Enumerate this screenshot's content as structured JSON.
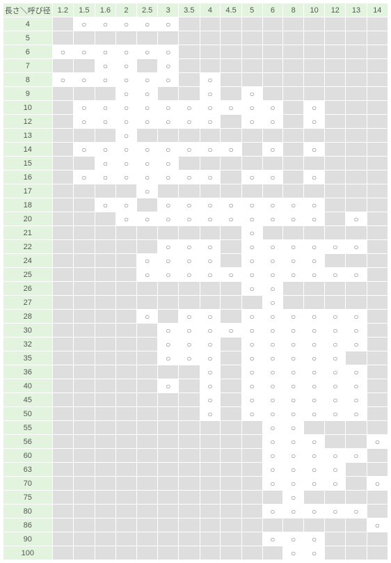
{
  "cornerLabel": "長さ＼呼び径",
  "diameters": [
    "1.2",
    "1.5",
    "1.6",
    "2",
    "2.5",
    "3",
    "3.5",
    "4",
    "4.5",
    "5",
    "6",
    "8",
    "10",
    "12",
    "13",
    "14"
  ],
  "lengths": [
    "4",
    "5",
    "6",
    "7",
    "8",
    "9",
    "10",
    "12",
    "13",
    "14",
    "15",
    "16",
    "17",
    "18",
    "20",
    "21",
    "22",
    "24",
    "25",
    "26",
    "27",
    "28",
    "30",
    "32",
    "35",
    "36",
    "40",
    "45",
    "50",
    "55",
    "56",
    "60",
    "63",
    "70",
    "75",
    "80",
    "86",
    "90",
    "100"
  ],
  "marks": {
    "4": {
      "1.5": 1,
      "1.6": 1,
      "2": 1,
      "2.5": 1,
      "3": 1
    },
    "5": {},
    "6": {
      "1.2": 1,
      "1.5": 1,
      "1.6": 1,
      "2": 1,
      "2.5": 1,
      "3": 1
    },
    "7": {
      "1.6": 1,
      "2": 1,
      "3": 1
    },
    "8": {
      "1.2": 1,
      "1.5": 1,
      "1.6": 1,
      "2": 1,
      "2.5": 1,
      "3": 1,
      "4": 1
    },
    "9": {
      "2": 1,
      "2.5": 1,
      "4": 1,
      "5": 1
    },
    "10": {
      "1.5": 1,
      "1.6": 1,
      "2": 1,
      "2.5": 1,
      "3": 1,
      "3.5": 1,
      "4": 1,
      "4.5": 1,
      "5": 1,
      "6": 1,
      "10": 1
    },
    "12": {
      "1.5": 1,
      "1.6": 1,
      "2": 1,
      "2.5": 1,
      "3": 1,
      "3.5": 1,
      "4": 1,
      "5": 1,
      "6": 1,
      "10": 1
    },
    "13": {
      "2": 1
    },
    "14": {
      "1.5": 1,
      "1.6": 1,
      "2": 1,
      "2.5": 1,
      "3": 1,
      "3.5": 1,
      "4": 1,
      "4.5": 1,
      "6": 1,
      "10": 1
    },
    "15": {
      "1.6": 1,
      "2": 1,
      "2.5": 1,
      "3": 1
    },
    "16": {
      "1.5": 1,
      "1.6": 1,
      "2": 1,
      "2.5": 1,
      "3": 1,
      "3.5": 1,
      "4": 1,
      "5": 1,
      "6": 1,
      "10": 1
    },
    "17": {
      "2.5": 1
    },
    "18": {
      "1.6": 1,
      "2": 1,
      "3": 1,
      "3.5": 1,
      "4": 1,
      "4.5": 1,
      "5": 1,
      "6": 1,
      "8": 1,
      "10": 1
    },
    "20": {
      "2": 1,
      "2.5": 1,
      "3": 1,
      "3.5": 1,
      "4": 1,
      "4.5": 1,
      "5": 1,
      "6": 1,
      "8": 1,
      "10": 1,
      "13": 1
    },
    "21": {
      "5": 1
    },
    "22": {
      "3": 1,
      "3.5": 1,
      "4": 1,
      "5": 1,
      "6": 1,
      "8": 1,
      "10": 1,
      "12": 1,
      "13": 1
    },
    "24": {
      "2.5": 1,
      "3": 1,
      "3.5": 1,
      "4": 1,
      "5": 1,
      "6": 1,
      "8": 1,
      "10": 1
    },
    "25": {
      "2.5": 1,
      "3": 1,
      "3.5": 1,
      "4": 1,
      "4.5": 1,
      "5": 1,
      "6": 1,
      "8": 1,
      "10": 1,
      "12": 1,
      "13": 1
    },
    "26": {
      "5": 1,
      "6": 1
    },
    "27": {
      "6": 1
    },
    "28": {
      "2.5": 1,
      "3.5": 1,
      "4": 1,
      "5": 1,
      "6": 1,
      "8": 1,
      "10": 1,
      "12": 1,
      "13": 1
    },
    "30": {
      "3": 1,
      "3.5": 1,
      "4": 1,
      "4.5": 1,
      "5": 1,
      "6": 1,
      "8": 1,
      "10": 1,
      "12": 1,
      "13": 1
    },
    "32": {
      "3": 1,
      "3.5": 1,
      "4": 1,
      "5": 1,
      "6": 1,
      "8": 1,
      "10": 1,
      "12": 1,
      "13": 1
    },
    "35": {
      "3": 1,
      "3.5": 1,
      "4": 1,
      "5": 1,
      "6": 1,
      "8": 1,
      "10": 1,
      "12": 1
    },
    "36": {
      "4": 1,
      "5": 1,
      "6": 1,
      "8": 1,
      "10": 1,
      "12": 1,
      "13": 1
    },
    "40": {
      "3": 1,
      "4": 1,
      "5": 1,
      "6": 1,
      "8": 1,
      "10": 1,
      "12": 1,
      "13": 1
    },
    "45": {
      "4": 1,
      "5": 1,
      "6": 1,
      "8": 1,
      "10": 1,
      "12": 1,
      "13": 1
    },
    "50": {
      "4": 1,
      "5": 1,
      "6": 1,
      "8": 1,
      "10": 1,
      "12": 1,
      "13": 1
    },
    "55": {
      "6": 1,
      "8": 1
    },
    "56": {
      "6": 1,
      "8": 1,
      "10": 1,
      "14": 1
    },
    "60": {
      "6": 1,
      "8": 1,
      "10": 1,
      "12": 1,
      "13": 1
    },
    "63": {
      "6": 1,
      "8": 1,
      "10": 1,
      "12": 1
    },
    "70": {
      "6": 1,
      "8": 1,
      "10": 1,
      "12": 1,
      "14": 1
    },
    "75": {
      "8": 1
    },
    "80": {
      "6": 1,
      "8": 1,
      "10": 1,
      "12": 1,
      "13": 1
    },
    "86": {
      "14": 1
    },
    "90": {
      "6": 1,
      "8": 1,
      "10": 1
    },
    "100": {
      "8": 1,
      "10": 1
    }
  },
  "markGlyph": "○",
  "colors": {
    "headerBg": "#e2f3de",
    "emptyBg": "#dedede",
    "markBg": "#ffffff",
    "border": "#ffffff",
    "text": "#555555"
  }
}
